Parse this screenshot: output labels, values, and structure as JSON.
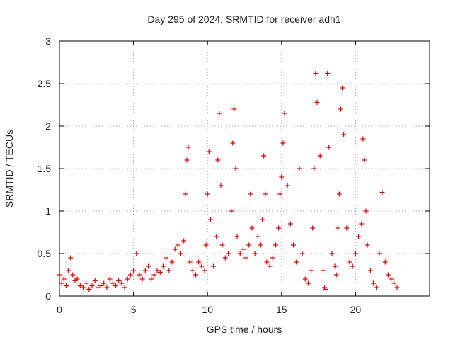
{
  "chart_data": {
    "type": "scatter",
    "title": "Day 295 of 2024, SRMTID for receiver adh1",
    "xlabel": "GPS time / hours",
    "ylabel": "SRMTID / TECUs",
    "xlim": [
      0,
      25
    ],
    "ylim": [
      0,
      3
    ],
    "xticks": [
      0,
      5,
      10,
      15,
      20
    ],
    "xtick_labels": [
      "0",
      "5",
      "10",
      "15",
      "20"
    ],
    "yticks": [
      0,
      0.5,
      1,
      1.5,
      2,
      2.5,
      3
    ],
    "ytick_labels": [
      "0",
      "0.5",
      "1",
      "1.5",
      "2",
      "2.5",
      "3"
    ],
    "grid": true,
    "marker": "+",
    "series": [
      {
        "name": "SRMTID",
        "color": "#e00000",
        "x": [
          0.0,
          0.15,
          0.3,
          0.45,
          0.6,
          0.75,
          0.9,
          1.05,
          1.2,
          1.4,
          1.6,
          1.8,
          2.0,
          2.2,
          2.4,
          2.6,
          2.8,
          3.0,
          3.2,
          3.4,
          3.6,
          3.8,
          4.0,
          4.2,
          4.4,
          4.6,
          4.8,
          5.0,
          5.2,
          5.4,
          5.6,
          5.8,
          6.0,
          6.2,
          6.4,
          6.6,
          6.8,
          7.0,
          7.2,
          7.4,
          7.6,
          7.8,
          8.0,
          8.2,
          8.4,
          8.5,
          8.6,
          8.7,
          8.8,
          9.0,
          9.2,
          9.4,
          9.6,
          9.8,
          9.9,
          10.0,
          10.1,
          10.2,
          10.4,
          10.6,
          10.7,
          10.8,
          10.9,
          11.0,
          11.2,
          11.4,
          11.6,
          11.7,
          11.8,
          11.9,
          12.0,
          12.2,
          12.4,
          12.6,
          12.8,
          12.9,
          13.0,
          13.2,
          13.4,
          13.6,
          13.7,
          13.8,
          13.9,
          14.0,
          14.2,
          14.4,
          14.6,
          14.8,
          14.9,
          15.0,
          15.1,
          15.2,
          15.4,
          15.6,
          15.8,
          16.0,
          16.2,
          16.4,
          16.6,
          16.8,
          17.0,
          17.1,
          17.2,
          17.3,
          17.4,
          17.6,
          17.8,
          17.9,
          18.0,
          18.1,
          18.2,
          18.4,
          18.6,
          18.7,
          18.8,
          18.9,
          19.0,
          19.1,
          19.2,
          19.4,
          19.6,
          19.8,
          20.0,
          20.2,
          20.4,
          20.5,
          20.6,
          20.7,
          20.8,
          21.0,
          21.2,
          21.4,
          21.6,
          21.8,
          22.0,
          22.2,
          22.4,
          22.6,
          22.8
        ],
        "y": [
          0.25,
          0.15,
          0.2,
          0.12,
          0.3,
          0.45,
          0.25,
          0.18,
          0.2,
          0.12,
          0.1,
          0.15,
          0.08,
          0.12,
          0.18,
          0.1,
          0.12,
          0.15,
          0.1,
          0.2,
          0.15,
          0.12,
          0.18,
          0.15,
          0.1,
          0.2,
          0.25,
          0.3,
          0.5,
          0.25,
          0.2,
          0.3,
          0.35,
          0.2,
          0.25,
          0.3,
          0.28,
          0.35,
          0.45,
          0.3,
          0.4,
          0.55,
          0.6,
          0.5,
          0.65,
          1.2,
          1.6,
          1.75,
          0.4,
          0.3,
          0.25,
          0.4,
          0.35,
          0.3,
          0.6,
          1.2,
          1.7,
          0.9,
          0.35,
          0.7,
          1.6,
          2.15,
          1.3,
          0.6,
          0.45,
          0.5,
          1.0,
          1.8,
          2.2,
          1.5,
          0.7,
          0.5,
          0.55,
          0.45,
          0.6,
          1.2,
          0.8,
          0.5,
          0.7,
          0.6,
          0.9,
          1.65,
          1.2,
          0.4,
          0.35,
          0.45,
          0.6,
          0.8,
          1.2,
          1.4,
          1.8,
          2.15,
          1.3,
          0.85,
          0.6,
          0.4,
          1.5,
          0.5,
          0.2,
          0.15,
          0.3,
          0.8,
          1.5,
          2.62,
          2.28,
          1.65,
          0.3,
          0.1,
          0.08,
          2.62,
          1.75,
          0.5,
          0.35,
          0.25,
          0.8,
          1.2,
          2.2,
          2.45,
          1.9,
          0.8,
          0.4,
          0.35,
          0.5,
          0.7,
          0.85,
          1.85,
          1.6,
          1.0,
          0.6,
          0.3,
          0.15,
          0.1,
          0.5,
          1.22,
          0.4,
          0.25,
          0.2,
          0.15,
          0.1
        ]
      }
    ]
  }
}
